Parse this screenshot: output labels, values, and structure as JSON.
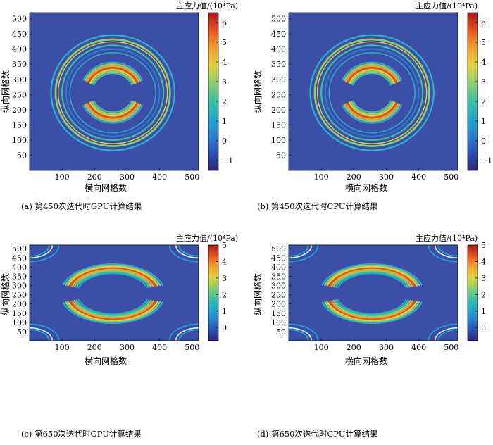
{
  "figure": {
    "background": "#3b4fa8",
    "colormap": [
      "#2b2a78",
      "#2a4fb8",
      "#2b7fd2",
      "#21a9c9",
      "#3fbf9f",
      "#8fcf6a",
      "#e3d23a",
      "#f2a330",
      "#e4521f",
      "#a71a1a"
    ],
    "colorbar_title": "主应力值/(10⁴Pa)",
    "xlabel": "横向网格数",
    "ylabel": "纵向网格数"
  },
  "chart_data": [
    {
      "type": "heatmap",
      "caption": "(a) 第450次迭代时GPU计算结果",
      "xlabel": "横向网格数",
      "ylabel": "纵向网格数",
      "colorbar_title": "主应力值/(10⁴Pa)",
      "xlim": [
        0,
        520
      ],
      "ylim": [
        0,
        520
      ],
      "xticks": [
        100,
        200,
        300,
        400,
        500
      ],
      "yticks": [
        50,
        100,
        150,
        200,
        250,
        300,
        350,
        400,
        450,
        500
      ],
      "clim": [
        -1.5,
        6.5
      ],
      "cticks": [
        -1,
        0,
        1,
        2,
        3,
        4,
        5,
        6
      ],
      "pattern": "inner-arcs-outer-rings"
    },
    {
      "type": "heatmap",
      "caption": "(b) 第450次迭代时CPU计算结果",
      "xlabel": "横向网格数",
      "ylabel": "纵向网格数",
      "colorbar_title": "主应力值/(10⁴Pa)",
      "xlim": [
        0,
        520
      ],
      "ylim": [
        0,
        520
      ],
      "xticks": [
        100,
        200,
        300,
        400,
        500
      ],
      "yticks": [
        50,
        100,
        150,
        200,
        250,
        300,
        350,
        400,
        450,
        500
      ],
      "clim": [
        -1.5,
        6.5
      ],
      "cticks": [
        -1,
        0,
        1,
        2,
        3,
        4,
        5,
        6
      ],
      "pattern": "inner-arcs-outer-rings"
    },
    {
      "type": "heatmap",
      "caption": "(c) 第650次迭代时GPU计算结果",
      "xlabel": "横向网格数",
      "ylabel": "纵向网格数",
      "colorbar_title": "主应力值/(10⁴Pa)",
      "xlim": [
        0,
        520
      ],
      "ylim": [
        0,
        520
      ],
      "xticks": [
        100,
        200,
        300,
        400,
        500
      ],
      "yticks": [
        50,
        100,
        150,
        200,
        250,
        300,
        350,
        400,
        450,
        500
      ],
      "clim": [
        -0.8,
        5.0
      ],
      "cticks": [
        0,
        1,
        2,
        3,
        4,
        5
      ],
      "pattern": "large-arcs-corner-waves"
    },
    {
      "type": "heatmap",
      "caption": "(d) 第650次迭代时CPU计算结果",
      "xlabel": "横向网格数",
      "ylabel": "纵向网格数",
      "colorbar_title": "主应力值/(10⁴Pa)",
      "xlim": [
        0,
        520
      ],
      "ylim": [
        0,
        520
      ],
      "xticks": [
        100,
        200,
        300,
        400,
        500
      ],
      "yticks": [
        50,
        100,
        150,
        200,
        250,
        300,
        350,
        400,
        450,
        500
      ],
      "clim": [
        -0.8,
        5.0
      ],
      "cticks": [
        0,
        1,
        2,
        3,
        4,
        5
      ],
      "pattern": "large-arcs-corner-waves"
    }
  ]
}
